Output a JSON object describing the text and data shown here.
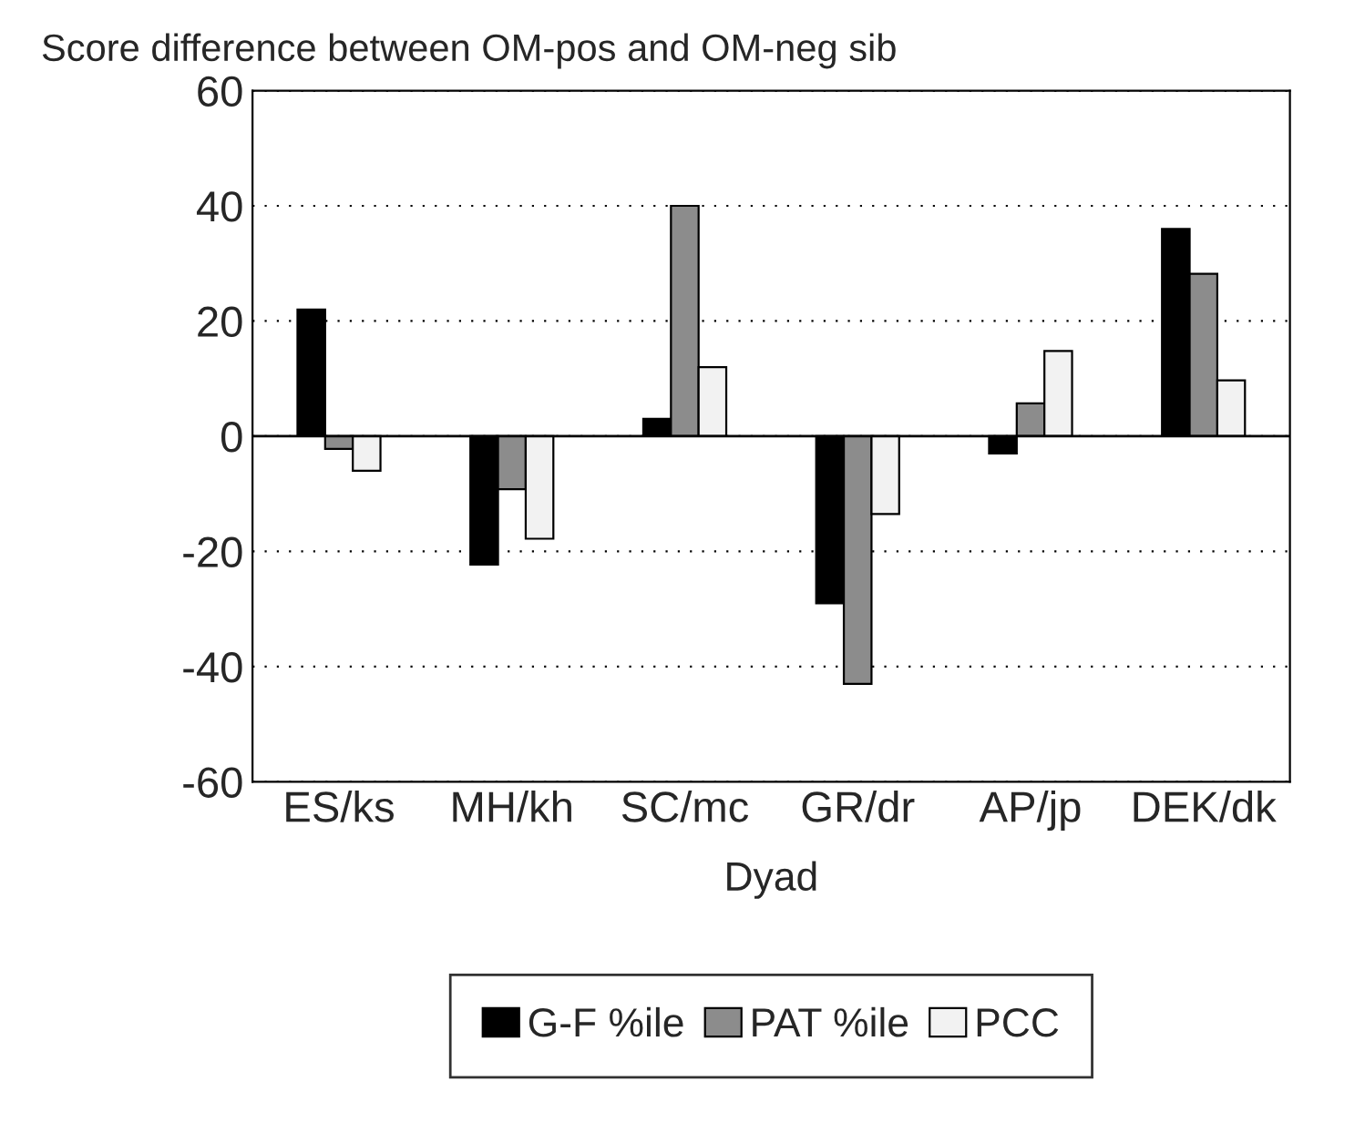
{
  "chart_data": {
    "type": "bar",
    "title": "Score difference between OM-pos and OM-neg sib",
    "xlabel": "Dyad",
    "categories": [
      "ES/ks",
      "MH/kh",
      "SC/mc",
      "GR/dr",
      "AP/jp",
      "DEK/dk"
    ],
    "series": [
      {
        "name": "G-F %ile",
        "color": "#000000",
        "values": [
          22,
          -22.3,
          3,
          -29,
          -3,
          36
        ]
      },
      {
        "name": "PAT %ile",
        "color": "#8c8c8c",
        "values": [
          -2.2,
          -9.2,
          40,
          -43,
          5.7,
          28.2
        ]
      },
      {
        "name": "PCC",
        "color": "#f2f2f2",
        "values": [
          -6,
          -17.8,
          12,
          -13.5,
          14.8,
          9.7
        ]
      }
    ],
    "ylim": [
      -60,
      60
    ],
    "yticks": [
      -60,
      -40,
      -20,
      0,
      20,
      40,
      60
    ],
    "grid": "y",
    "legend": "bottom"
  }
}
